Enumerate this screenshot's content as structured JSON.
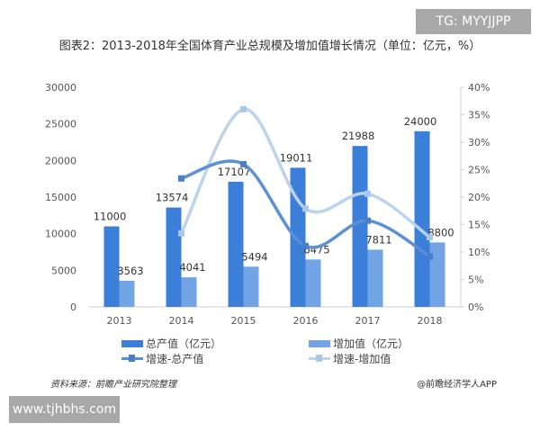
{
  "chart_data": {
    "type": "bar",
    "title": "图表2：2013-2018年全国体育产业总规模及增加值增长情况（单位：亿元，%）",
    "categories": [
      "2013",
      "2014",
      "2015",
      "2016",
      "2017",
      "2018"
    ],
    "ylim": [
      0,
      30000
    ],
    "y2lim": [
      0,
      40
    ],
    "yticks": [
      "0",
      "5000",
      "10000",
      "15000",
      "20000",
      "25000",
      "30000"
    ],
    "y2ticks": [
      "0%",
      "5%",
      "10%",
      "15%",
      "20%",
      "25%",
      "30%",
      "35%",
      "40%"
    ],
    "series": [
      {
        "name": "总产值（亿元）",
        "type": "bar",
        "axis": "left",
        "color": "#3c7fd8",
        "values": [
          11000,
          13574,
          17107,
          19011,
          21988,
          24000
        ]
      },
      {
        "name": "增加值（亿元）",
        "type": "bar",
        "axis": "left",
        "color": "#72a3e4",
        "values": [
          3563,
          4041,
          5494,
          6475,
          7811,
          8800
        ]
      },
      {
        "name": "增速-总产值",
        "type": "line",
        "axis": "right",
        "color": "#5b8fd6",
        "values": [
          null,
          23.4,
          26.0,
          11.1,
          15.7,
          9.2
        ]
      },
      {
        "name": "增速-增加值",
        "type": "line",
        "axis": "right",
        "color": "#bcd3ec",
        "values": [
          null,
          13.4,
          36.0,
          17.9,
          20.6,
          12.7
        ]
      }
    ],
    "legend_position": "bottom",
    "grid": false
  },
  "footer": {
    "source": "资料来源：前瞻产业研究院整理",
    "credit": "@前瞻经济学人APP"
  },
  "watermarks": {
    "top_right": "TG: MYYJJPP",
    "bottom_left": "www.tjhbhs.com"
  }
}
